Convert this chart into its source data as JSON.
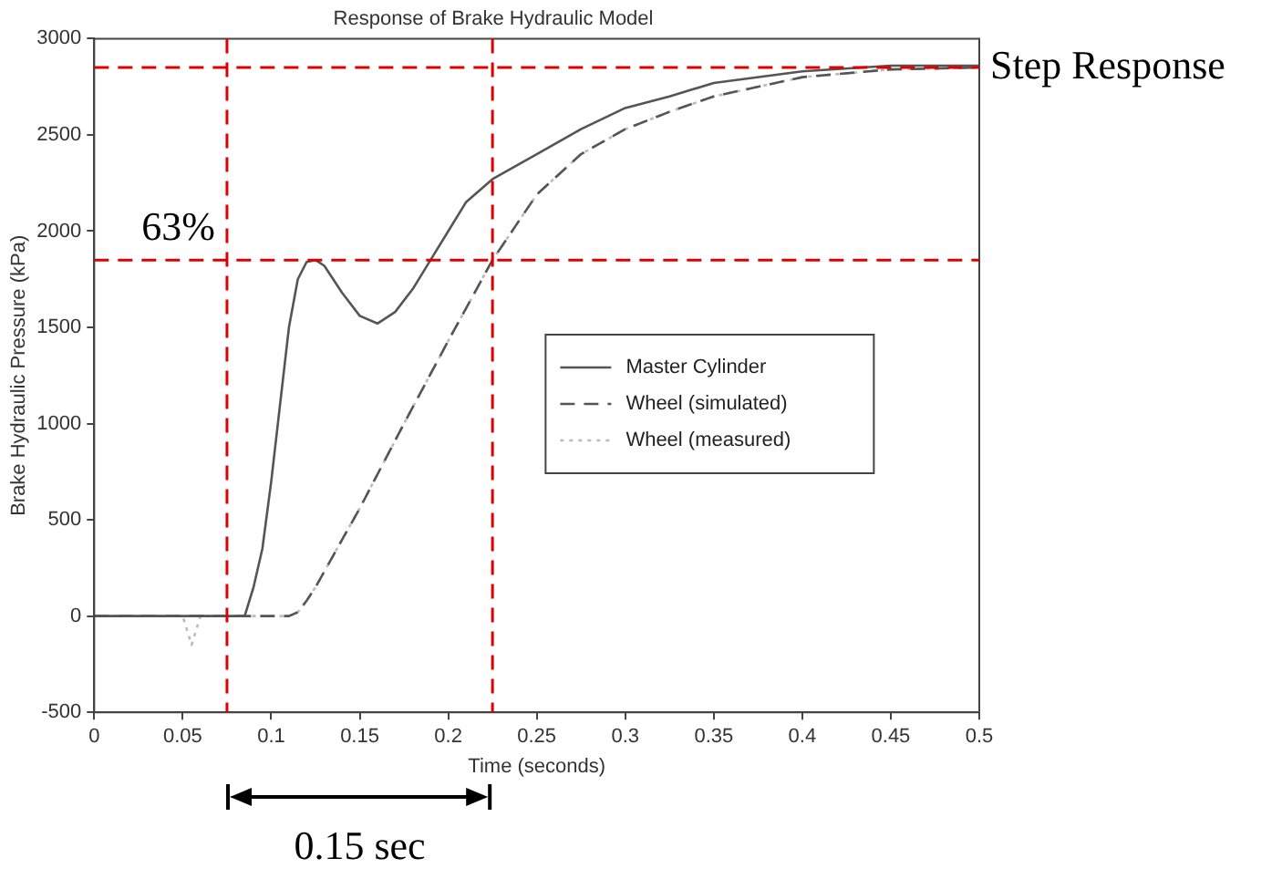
{
  "chart_data": {
    "type": "line",
    "title": "Response of Brake Hydraulic Model",
    "xlabel": "Time (seconds)",
    "ylabel": "Brake Hydraulic Pressure (kPa)",
    "xlim": [
      0,
      0.5
    ],
    "xticks": [
      0,
      0.05,
      0.1,
      0.15,
      0.2,
      0.25,
      0.3,
      0.35,
      0.4,
      0.45,
      0.5
    ],
    "ylim": [
      -500,
      3000
    ],
    "yticks": [
      -500,
      0,
      500,
      1000,
      1500,
      2000,
      2500,
      3000
    ],
    "grid": false,
    "legend": "bottom right",
    "marker": "none",
    "series": [
      {
        "name": "Master Cylinder",
        "color": "#555555",
        "line_style": "solid",
        "x": [
          0,
          0.02,
          0.04,
          0.06,
          0.085,
          0.09,
          0.095,
          0.1,
          0.105,
          0.11,
          0.115,
          0.12,
          0.125,
          0.13,
          0.14,
          0.15,
          0.16,
          0.17,
          0.18,
          0.19,
          0.2,
          0.21,
          0.225,
          0.25,
          0.275,
          0.3,
          0.325,
          0.35,
          0.4,
          0.45,
          0.5
        ],
        "values": [
          0,
          0,
          0,
          0,
          0,
          150,
          350,
          700,
          1100,
          1500,
          1750,
          1840,
          1850,
          1820,
          1680,
          1560,
          1520,
          1580,
          1700,
          1850,
          2000,
          2150,
          2270,
          2400,
          2530,
          2640,
          2700,
          2770,
          2830,
          2860,
          2860
        ]
      },
      {
        "name": "Wheel (simulated)",
        "color": "#555555",
        "line_style": "dashed",
        "x": [
          0,
          0.05,
          0.11,
          0.115,
          0.12,
          0.125,
          0.15,
          0.175,
          0.2,
          0.225,
          0.25,
          0.275,
          0.3,
          0.325,
          0.35,
          0.4,
          0.45,
          0.5
        ],
        "values": [
          0,
          0,
          0,
          20,
          80,
          150,
          560,
          1000,
          1430,
          1850,
          2190,
          2400,
          2530,
          2620,
          2700,
          2800,
          2840,
          2850
        ]
      },
      {
        "name": "Wheel (measured)",
        "color": "#bbbbbb",
        "line_style": "dotted",
        "x": [
          0,
          0.05,
          0.055,
          0.06,
          0.11,
          0.115,
          0.12,
          0.125,
          0.15,
          0.175,
          0.2,
          0.225,
          0.25,
          0.275,
          0.3,
          0.325,
          0.35,
          0.4,
          0.45,
          0.5
        ],
        "values": [
          0,
          0,
          -150,
          0,
          0,
          20,
          80,
          150,
          560,
          1000,
          1430,
          1850,
          2190,
          2400,
          2530,
          2620,
          2700,
          2800,
          2840,
          2850
        ]
      }
    ],
    "ref_lines": [
      {
        "axis": "y",
        "value": 2850,
        "label": "Step Response",
        "color": "#e00000",
        "line_style": "dashed"
      },
      {
        "axis": "y",
        "value": 1850,
        "label": null,
        "color": "#e00000",
        "line_style": "dashed"
      },
      {
        "axis": "x",
        "value": 0.075,
        "label": null,
        "color": "#e00000",
        "line_style": "dashed"
      },
      {
        "axis": "x",
        "value": 0.225,
        "label": null,
        "color": "#e00000",
        "line_style": "dashed"
      }
    ],
    "annotations": [
      "63%",
      "0.15 sec"
    ]
  }
}
